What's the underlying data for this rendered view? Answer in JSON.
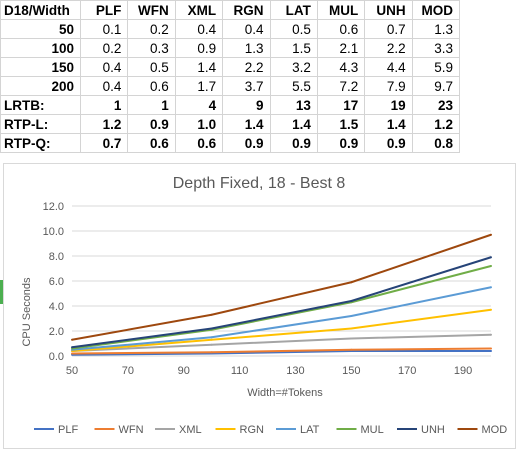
{
  "sheet": {
    "header": [
      "D18/Width",
      "PLF",
      "WFN",
      "XML",
      "RGN",
      "LAT",
      "MUL",
      "UNH",
      "MOD"
    ],
    "data_rows": [
      {
        "label": "50",
        "values": [
          "0.1",
          "0.2",
          "0.4",
          "0.4",
          "0.5",
          "0.6",
          "0.7",
          "1.3"
        ]
      },
      {
        "label": "100",
        "values": [
          "0.2",
          "0.3",
          "0.9",
          "1.3",
          "1.5",
          "2.1",
          "2.2",
          "3.3"
        ]
      },
      {
        "label": "150",
        "values": [
          "0.4",
          "0.5",
          "1.4",
          "2.2",
          "3.2",
          "4.3",
          "4.4",
          "5.9"
        ]
      },
      {
        "label": "200",
        "values": [
          "0.4",
          "0.6",
          "1.7",
          "3.7",
          "5.5",
          "7.2",
          "7.9",
          "9.7"
        ]
      }
    ],
    "summary_rows": [
      {
        "label": "LRTB:",
        "values": [
          "1",
          "1",
          "4",
          "9",
          "13",
          "17",
          "19",
          "23"
        ]
      },
      {
        "label": "RTP-L:",
        "values": [
          "1.2",
          "0.9",
          "1.0",
          "1.4",
          "1.4",
          "1.5",
          "1.4",
          "1.2"
        ]
      },
      {
        "label": "RTP-Q:",
        "values": [
          "0.7",
          "0.6",
          "0.6",
          "0.9",
          "0.9",
          "0.9",
          "0.9",
          "0.8"
        ]
      }
    ]
  },
  "chart_data": {
    "type": "line",
    "title": "Depth Fixed, 18 - Best 8",
    "xlabel": "Width=#Tokens",
    "ylabel": "CPU Seconds",
    "x": [
      50,
      100,
      150,
      200
    ],
    "xlim": [
      50,
      200
    ],
    "ylim": [
      0,
      12
    ],
    "xticks": [
      "50",
      "70",
      "90",
      "110",
      "130",
      "150",
      "170",
      "190"
    ],
    "yticks": [
      "0.0",
      "2.0",
      "4.0",
      "6.0",
      "8.0",
      "10.0",
      "12.0"
    ],
    "grid": "horizontal",
    "legend": "bottom",
    "series": [
      {
        "name": "PLF",
        "values": [
          0.1,
          0.2,
          0.4,
          0.4
        ],
        "color": "#4472c4"
      },
      {
        "name": "WFN",
        "values": [
          0.2,
          0.3,
          0.5,
          0.6
        ],
        "color": "#ed7d31"
      },
      {
        "name": "XML",
        "values": [
          0.4,
          0.9,
          1.4,
          1.7
        ],
        "color": "#a5a5a5"
      },
      {
        "name": "RGN",
        "values": [
          0.4,
          1.3,
          2.2,
          3.7
        ],
        "color": "#ffc000"
      },
      {
        "name": "LAT",
        "values": [
          0.5,
          1.5,
          3.2,
          5.5
        ],
        "color": "#5b9bd5"
      },
      {
        "name": "MUL",
        "values": [
          0.6,
          2.1,
          4.3,
          7.2
        ],
        "color": "#70ad47"
      },
      {
        "name": "UNH",
        "values": [
          0.7,
          2.2,
          4.4,
          7.9
        ],
        "color": "#264478"
      },
      {
        "name": "MOD",
        "values": [
          1.3,
          3.3,
          5.9,
          9.7
        ],
        "color": "#9e480e"
      }
    ]
  }
}
